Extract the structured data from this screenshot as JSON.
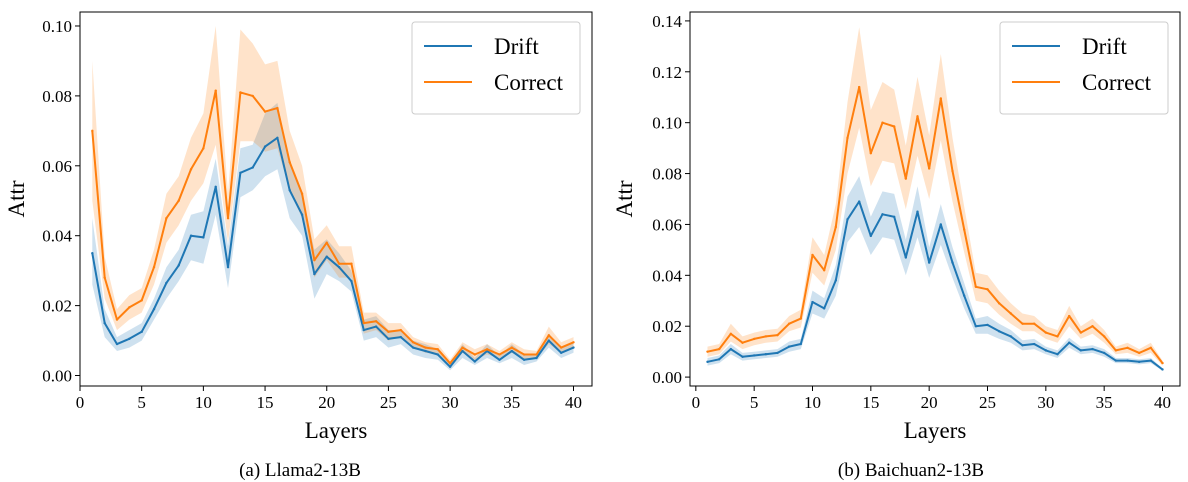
{
  "chart_data": [
    {
      "type": "line",
      "caption": "(a) Llama2-13B",
      "xlabel": "Layers",
      "ylabel": "Attr",
      "xlim": [
        0,
        41.5
      ],
      "ylim": [
        -0.003,
        0.104
      ],
      "xticks": [
        0,
        5,
        10,
        15,
        20,
        25,
        30,
        35,
        40
      ],
      "yticks": [
        0.0,
        0.02,
        0.04,
        0.06,
        0.08,
        0.1
      ],
      "ytick_decimals": 2,
      "legend": "top-right",
      "grid": false,
      "x": [
        1,
        2,
        3,
        4,
        5,
        6,
        7,
        8,
        9,
        10,
        11,
        12,
        13,
        14,
        15,
        16,
        17,
        18,
        19,
        20,
        21,
        22,
        23,
        24,
        25,
        26,
        27,
        28,
        29,
        30,
        31,
        32,
        33,
        34,
        35,
        36,
        37,
        38,
        39,
        40
      ],
      "series": [
        {
          "name": "Drift",
          "color": "#1f77b4",
          "values": [
            0.035,
            0.015,
            0.009,
            0.0105,
            0.0125,
            0.019,
            0.0265,
            0.0315,
            0.04,
            0.0395,
            0.054,
            0.031,
            0.058,
            0.0595,
            0.0655,
            0.068,
            0.053,
            0.046,
            0.029,
            0.034,
            0.031,
            0.027,
            0.013,
            0.014,
            0.0105,
            0.011,
            0.008,
            0.007,
            0.006,
            0.0025,
            0.007,
            0.004,
            0.007,
            0.0045,
            0.007,
            0.0045,
            0.005,
            0.01,
            0.0065,
            0.008
          ],
          "lower": [
            0.026,
            0.011,
            0.007,
            0.008,
            0.01,
            0.016,
            0.022,
            0.027,
            0.033,
            0.032,
            0.046,
            0.025,
            0.051,
            0.053,
            0.057,
            0.059,
            0.045,
            0.04,
            0.022,
            0.029,
            0.027,
            0.024,
            0.01,
            0.011,
            0.008,
            0.009,
            0.006,
            0.005,
            0.0045,
            0.0015,
            0.005,
            0.003,
            0.005,
            0.0035,
            0.005,
            0.003,
            0.004,
            0.008,
            0.005,
            0.0065
          ],
          "upper": [
            0.045,
            0.019,
            0.011,
            0.013,
            0.015,
            0.022,
            0.031,
            0.036,
            0.046,
            0.047,
            0.062,
            0.037,
            0.065,
            0.066,
            0.075,
            0.078,
            0.061,
            0.052,
            0.036,
            0.039,
            0.035,
            0.03,
            0.016,
            0.017,
            0.013,
            0.013,
            0.01,
            0.009,
            0.0075,
            0.0035,
            0.009,
            0.005,
            0.009,
            0.0055,
            0.009,
            0.006,
            0.006,
            0.012,
            0.008,
            0.0095
          ]
        },
        {
          "name": "Correct",
          "color": "#ff7f0e",
          "values": [
            0.07,
            0.028,
            0.016,
            0.0195,
            0.0215,
            0.031,
            0.045,
            0.05,
            0.059,
            0.065,
            0.0815,
            0.045,
            0.081,
            0.08,
            0.0755,
            0.0765,
            0.061,
            0.052,
            0.033,
            0.038,
            0.032,
            0.032,
            0.015,
            0.0155,
            0.0125,
            0.013,
            0.0095,
            0.008,
            0.0075,
            0.0035,
            0.008,
            0.006,
            0.0075,
            0.006,
            0.008,
            0.006,
            0.006,
            0.0115,
            0.008,
            0.0095
          ],
          "lower": [
            0.05,
            0.022,
            0.013,
            0.016,
            0.018,
            0.026,
            0.038,
            0.043,
            0.05,
            0.055,
            0.066,
            0.038,
            0.067,
            0.067,
            0.064,
            0.065,
            0.053,
            0.045,
            0.028,
            0.033,
            0.028,
            0.028,
            0.012,
            0.013,
            0.01,
            0.011,
            0.008,
            0.0065,
            0.006,
            0.0025,
            0.0065,
            0.0045,
            0.006,
            0.005,
            0.0065,
            0.0045,
            0.005,
            0.009,
            0.0065,
            0.008
          ],
          "upper": [
            0.09,
            0.034,
            0.019,
            0.023,
            0.025,
            0.036,
            0.052,
            0.057,
            0.068,
            0.075,
            0.1,
            0.052,
            0.099,
            0.095,
            0.089,
            0.09,
            0.07,
            0.06,
            0.039,
            0.043,
            0.037,
            0.037,
            0.018,
            0.018,
            0.015,
            0.015,
            0.011,
            0.0095,
            0.009,
            0.0045,
            0.0095,
            0.0075,
            0.009,
            0.007,
            0.0095,
            0.0075,
            0.007,
            0.014,
            0.0095,
            0.011
          ]
        }
      ]
    },
    {
      "type": "line",
      "caption": "(b) Baichuan2-13B",
      "xlabel": "Layers",
      "ylabel": "Attr",
      "xlim": [
        -0.5,
        41.5
      ],
      "ylim": [
        -0.0035,
        0.1435
      ],
      "xticks": [
        0,
        5,
        10,
        15,
        20,
        25,
        30,
        35,
        40
      ],
      "yticks": [
        0.0,
        0.02,
        0.04,
        0.06,
        0.08,
        0.1,
        0.12,
        0.14
      ],
      "ytick_decimals": 2,
      "legend": "top-right",
      "grid": false,
      "x": [
        1,
        2,
        3,
        4,
        5,
        6,
        7,
        8,
        9,
        10,
        11,
        12,
        13,
        14,
        15,
        16,
        17,
        18,
        19,
        20,
        21,
        22,
        23,
        24,
        25,
        26,
        27,
        28,
        29,
        30,
        31,
        32,
        33,
        34,
        35,
        36,
        37,
        38,
        39,
        40
      ],
      "series": [
        {
          "name": "Drift",
          "color": "#1f77b4",
          "values": [
            0.006,
            0.007,
            0.011,
            0.008,
            0.0085,
            0.009,
            0.0095,
            0.012,
            0.013,
            0.0295,
            0.027,
            0.038,
            0.062,
            0.069,
            0.0555,
            0.064,
            0.063,
            0.047,
            0.065,
            0.045,
            0.06,
            0.045,
            0.032,
            0.02,
            0.0205,
            0.018,
            0.016,
            0.0125,
            0.013,
            0.0105,
            0.009,
            0.0135,
            0.0105,
            0.011,
            0.0095,
            0.0065,
            0.0065,
            0.006,
            0.0065,
            0.003
          ],
          "lower": [
            0.0045,
            0.0055,
            0.009,
            0.0065,
            0.007,
            0.0075,
            0.008,
            0.01,
            0.011,
            0.025,
            0.023,
            0.032,
            0.053,
            0.059,
            0.048,
            0.055,
            0.054,
            0.04,
            0.055,
            0.039,
            0.052,
            0.039,
            0.027,
            0.017,
            0.017,
            0.015,
            0.0135,
            0.0105,
            0.011,
            0.009,
            0.0075,
            0.0115,
            0.009,
            0.0095,
            0.008,
            0.0055,
            0.0055,
            0.005,
            0.0055,
            0.0025
          ],
          "upper": [
            0.0075,
            0.0085,
            0.013,
            0.0095,
            0.01,
            0.0105,
            0.011,
            0.014,
            0.015,
            0.034,
            0.031,
            0.044,
            0.071,
            0.079,
            0.063,
            0.073,
            0.072,
            0.054,
            0.075,
            0.051,
            0.068,
            0.051,
            0.037,
            0.023,
            0.024,
            0.021,
            0.0185,
            0.0145,
            0.015,
            0.012,
            0.0105,
            0.0155,
            0.012,
            0.0125,
            0.011,
            0.0075,
            0.0075,
            0.007,
            0.0075,
            0.0035
          ]
        },
        {
          "name": "Correct",
          "color": "#ff7f0e",
          "values": [
            0.01,
            0.011,
            0.017,
            0.0135,
            0.015,
            0.016,
            0.0165,
            0.021,
            0.023,
            0.048,
            0.042,
            0.059,
            0.094,
            0.114,
            0.088,
            0.1,
            0.0985,
            0.078,
            0.1025,
            0.082,
            0.1095,
            0.081,
            0.058,
            0.0355,
            0.0345,
            0.029,
            0.025,
            0.021,
            0.021,
            0.0175,
            0.016,
            0.024,
            0.0175,
            0.02,
            0.016,
            0.0105,
            0.0115,
            0.0095,
            0.0115,
            0.0055
          ],
          "lower": [
            0.008,
            0.009,
            0.014,
            0.011,
            0.0125,
            0.0135,
            0.014,
            0.018,
            0.0195,
            0.041,
            0.036,
            0.05,
            0.08,
            0.098,
            0.075,
            0.085,
            0.084,
            0.066,
            0.087,
            0.07,
            0.093,
            0.069,
            0.049,
            0.03,
            0.029,
            0.0245,
            0.021,
            0.018,
            0.018,
            0.015,
            0.0135,
            0.02,
            0.015,
            0.017,
            0.0135,
            0.009,
            0.0095,
            0.008,
            0.0095,
            0.0045
          ],
          "upper": [
            0.012,
            0.013,
            0.021,
            0.016,
            0.0175,
            0.0185,
            0.019,
            0.024,
            0.0265,
            0.055,
            0.048,
            0.068,
            0.108,
            0.1375,
            0.105,
            0.116,
            0.113,
            0.091,
            0.118,
            0.095,
            0.127,
            0.094,
            0.067,
            0.041,
            0.04,
            0.034,
            0.029,
            0.025,
            0.024,
            0.02,
            0.0185,
            0.028,
            0.02,
            0.023,
            0.0185,
            0.012,
            0.0135,
            0.011,
            0.0135,
            0.0065
          ]
        }
      ]
    }
  ]
}
